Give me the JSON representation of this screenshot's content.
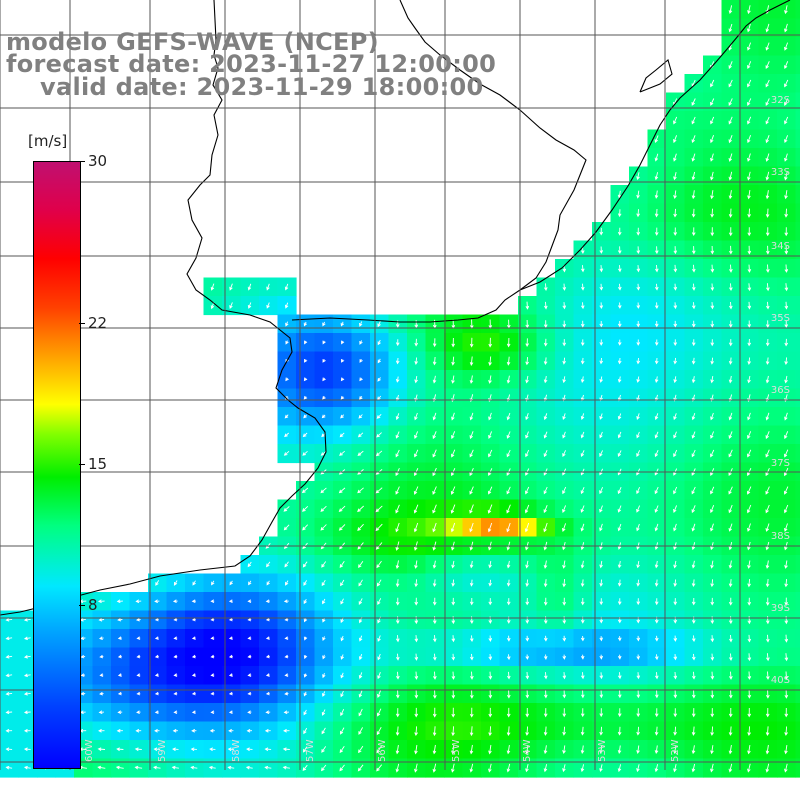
{
  "title": {
    "line1": "modelo GEFS-WAVE (NCEP)",
    "line2": "forecast date: 2023-11-27 12:00:00",
    "line3": "valid date: 2023-11-29 18:00:00"
  },
  "colorbar": {
    "units": "[m/s]",
    "ticks": [
      {
        "value": 30,
        "label": "30"
      },
      {
        "value": 22,
        "label": "22"
      },
      {
        "value": 15,
        "label": "15"
      },
      {
        "value": 8,
        "label": "8"
      }
    ],
    "min": 0,
    "max": 30
  },
  "map": {
    "parameter": "wind speed",
    "arrow_color": "#ffffff",
    "grid_color": "#555555",
    "land_color": "#ffffff",
    "lat_labels": [
      "32S",
      "33S",
      "34S",
      "35S",
      "36S",
      "37S",
      "38S",
      "39S",
      "40S"
    ],
    "lon_labels": [
      "60W",
      "59W",
      "58W",
      "57W",
      "56W",
      "55W",
      "54W",
      "53W",
      "52W"
    ]
  }
}
